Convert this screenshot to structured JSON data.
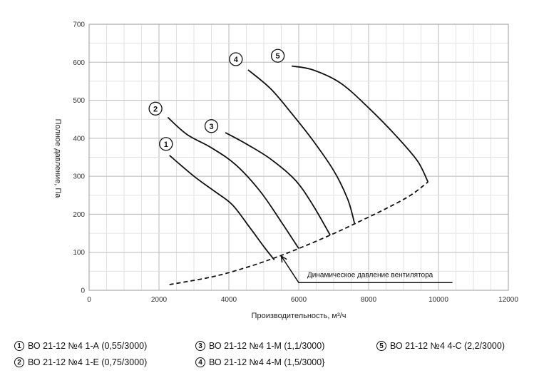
{
  "chart_data": {
    "type": "line",
    "xlabel": "Производительность, м³/ч",
    "ylabel": "Полное давление, Па",
    "xlim": [
      0,
      12000
    ],
    "ylim": [
      0,
      700
    ],
    "x_ticks": [
      "0",
      "2000",
      "4000",
      "6000",
      "8000",
      "10000",
      "12000"
    ],
    "y_ticks": [
      "0",
      "100",
      "200",
      "300",
      "400",
      "500",
      "600",
      "700"
    ],
    "grid": true,
    "series": [
      {
        "marker": "1",
        "x": [
          2300,
          3000,
          3600,
          4100,
          4600,
          5000,
          5300
        ],
        "y": [
          355,
          300,
          260,
          225,
          165,
          115,
          80
        ]
      },
      {
        "marker": "2",
        "x": [
          2250,
          2800,
          3500,
          4200,
          4900,
          5500,
          6000
        ],
        "y": [
          455,
          410,
          375,
          330,
          260,
          180,
          110
        ]
      },
      {
        "marker": "3",
        "x": [
          3900,
          4500,
          5200,
          5900,
          6400,
          6900
        ],
        "y": [
          415,
          385,
          345,
          290,
          225,
          145
        ]
      },
      {
        "marker": "4",
        "x": [
          4550,
          5200,
          5800,
          6400,
          7000,
          7400,
          7600
        ],
        "y": [
          580,
          530,
          465,
          395,
          315,
          240,
          175
        ]
      },
      {
        "marker": "5",
        "x": [
          5800,
          6400,
          7200,
          8000,
          8800,
          9400,
          9700
        ],
        "y": [
          590,
          580,
          545,
          480,
          405,
          340,
          285
        ]
      }
    ],
    "dynamic_pressure": {
      "x": [
        2300,
        3500,
        4500,
        5300,
        6000,
        6900,
        7600,
        8500,
        9200,
        9700
      ],
      "y": [
        15,
        35,
        60,
        85,
        110,
        145,
        175,
        215,
        250,
        285
      ]
    },
    "annotation": {
      "text": "Динамическое давление вентилятора",
      "line": {
        "x": [
          10400,
          6000,
          5500
        ],
        "y": [
          20,
          20,
          90
        ]
      }
    },
    "markers": [
      {
        "label": "1",
        "x": 2200,
        "y": 385
      },
      {
        "label": "2",
        "x": 1900,
        "y": 478
      },
      {
        "label": "3",
        "x": 3500,
        "y": 432
      },
      {
        "label": "4",
        "x": 4200,
        "y": 608
      },
      {
        "label": "5",
        "x": 5400,
        "y": 617
      }
    ]
  },
  "legend": [
    {
      "num": "1",
      "text": "ВО 21-12 №4 1-А (0,55/3000)"
    },
    {
      "num": "3",
      "text": "ВО 21-12 №4 1-М (1,1/3000)"
    },
    {
      "num": "5",
      "text": "ВО 21-12 №4 4-С (2,2/3000)"
    },
    {
      "num": "2",
      "text": "ВО 21-12 №4 1-Е (0,75/3000)"
    },
    {
      "num": "4",
      "text": "ВО 21-12 №4 4-М (1,5/3000}"
    }
  ]
}
